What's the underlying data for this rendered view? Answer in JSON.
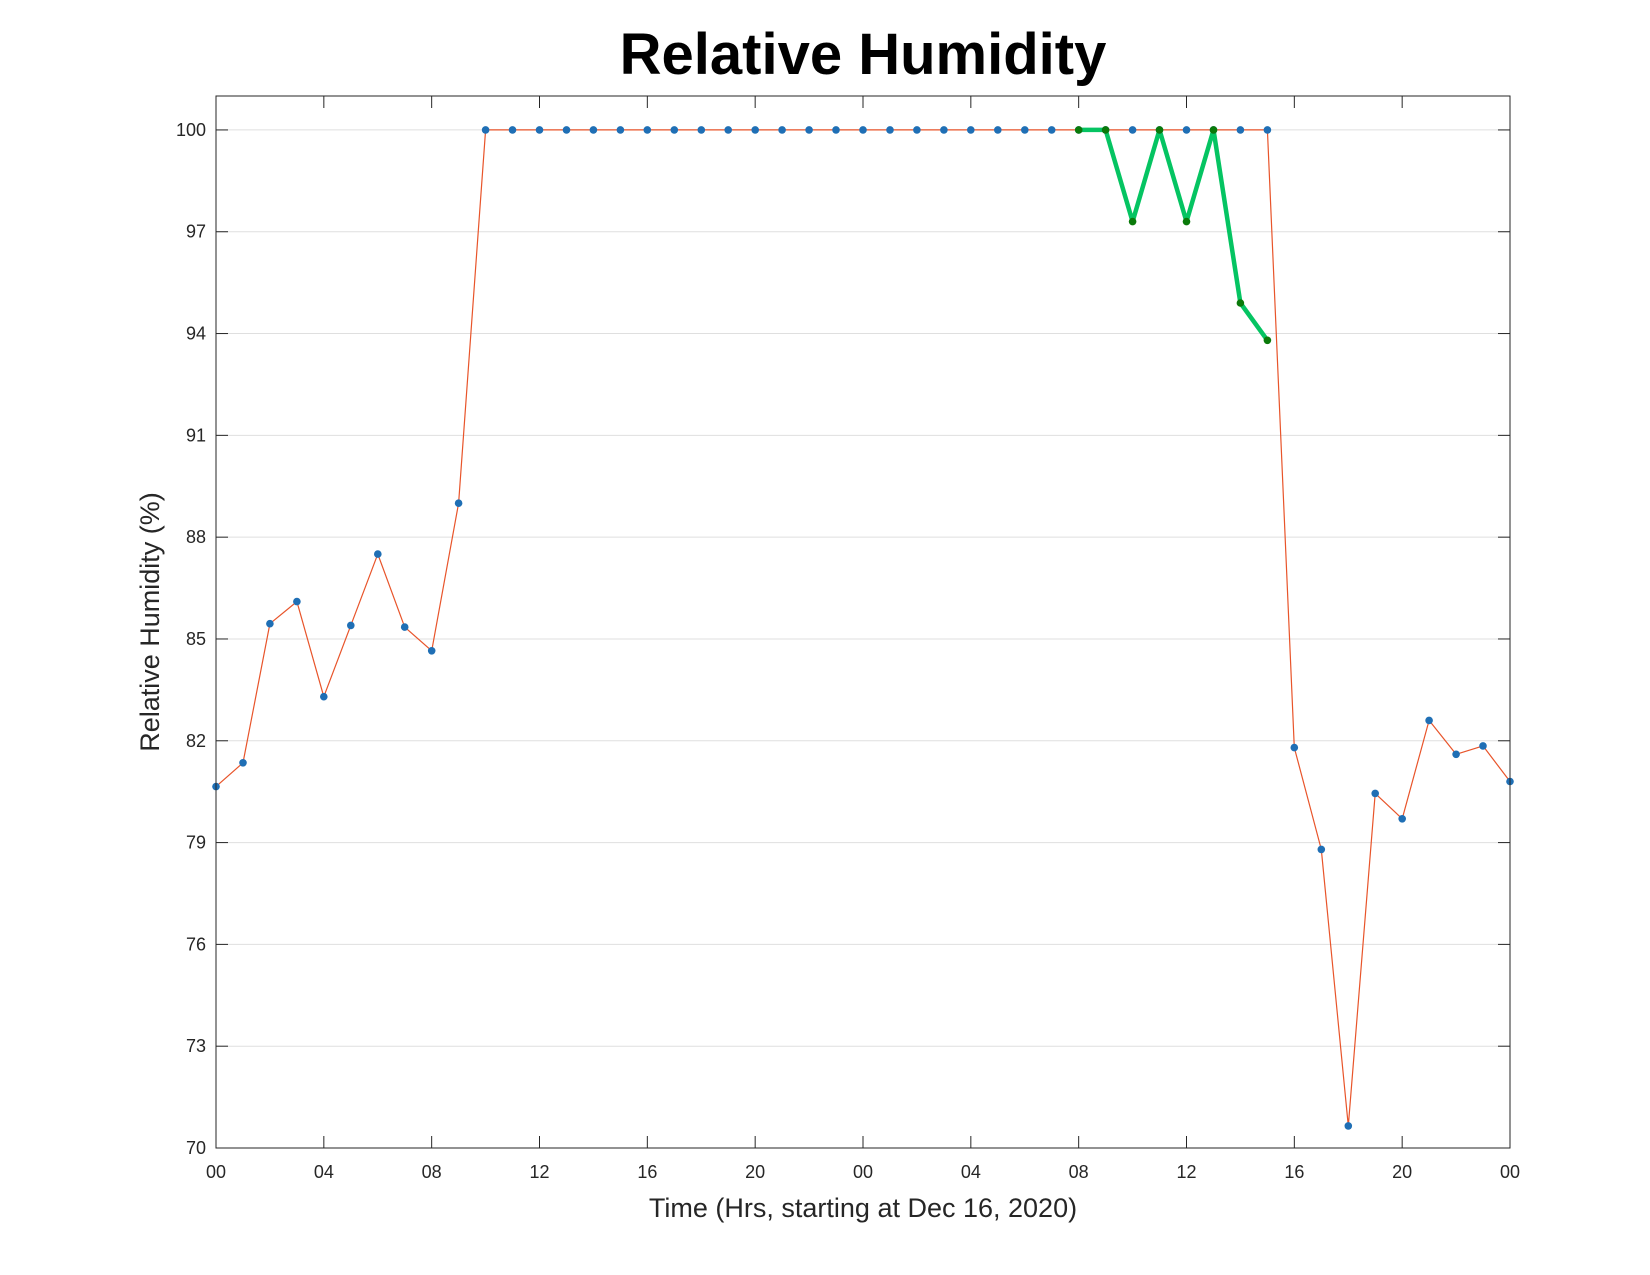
{
  "chart_data": {
    "type": "line",
    "title": "Relative Humidity",
    "xlabel": "Time (Hrs, starting at Dec 16, 2020)",
    "ylabel": "Relative Humidity (%)",
    "ylim": [
      70,
      101
    ],
    "xlim": [
      0,
      48
    ],
    "grid": "horizontal",
    "x_tick_hours": [
      0,
      4,
      8,
      12,
      16,
      20,
      24,
      28,
      32,
      36,
      40,
      44,
      48
    ],
    "x_tick_labels": [
      "00",
      "04",
      "08",
      "12",
      "16",
      "20",
      "00",
      "04",
      "08",
      "12",
      "16",
      "20",
      "00"
    ],
    "y_ticks": [
      70,
      73,
      76,
      79,
      82,
      85,
      88,
      91,
      94,
      97,
      100
    ],
    "y_tick_labels": [
      "70",
      "73",
      "76",
      "79",
      "82",
      "85",
      "88",
      "91",
      "94",
      "97",
      "100"
    ],
    "series": [
      {
        "line_color": "#e8542a",
        "marker_color": "#1f6fb5",
        "x": [
          0,
          1,
          2,
          3,
          4,
          5,
          6,
          7,
          8,
          9,
          10,
          11,
          12,
          13,
          14,
          15,
          16,
          17,
          18,
          19,
          20,
          21,
          22,
          23,
          24,
          25,
          26,
          27,
          28,
          29,
          30,
          31,
          32,
          33,
          34,
          35,
          36,
          37,
          38,
          39,
          40,
          41,
          42,
          43,
          44,
          45,
          46,
          47,
          48
        ],
        "y": [
          80.65,
          81.35,
          85.45,
          86.1,
          83.3,
          85.4,
          87.5,
          85.35,
          84.65,
          89.0,
          100,
          100,
          100,
          100,
          100,
          100,
          100,
          100,
          100,
          100,
          100,
          100,
          100,
          100,
          100,
          100,
          100,
          100,
          100,
          100,
          100,
          100,
          100,
          100,
          100,
          100,
          100,
          100,
          100,
          100,
          81.8,
          78.8,
          70.65,
          80.45,
          79.7,
          82.6,
          81.6,
          81.85,
          80.8
        ]
      },
      {
        "line_color": "#05c462",
        "marker_color": "#0a7a0a",
        "x": [
          32,
          33,
          34,
          35,
          36,
          37,
          38,
          39
        ],
        "y": [
          100,
          100,
          97.3,
          100,
          97.3,
          100,
          94.9,
          93.8
        ]
      }
    ]
  }
}
